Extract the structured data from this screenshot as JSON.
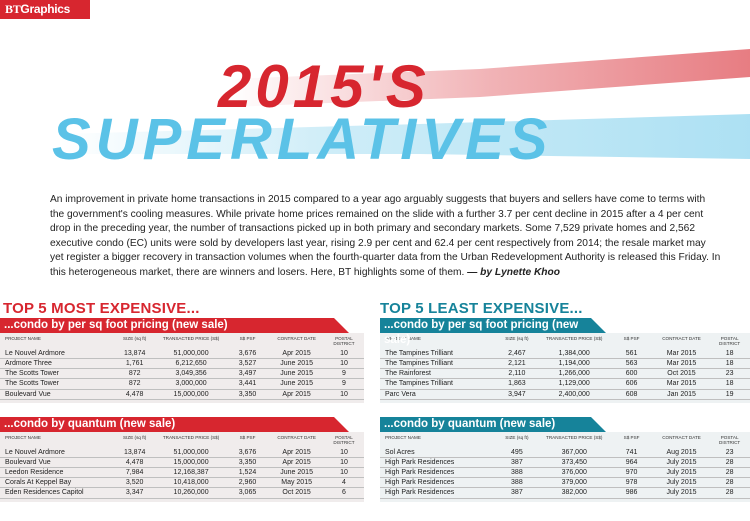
{
  "brand": {
    "label_bold": "BT",
    "label_rest": "Graphics"
  },
  "hero": {
    "line1": "2015'S",
    "line2": "SUPERLATIVES"
  },
  "intro": {
    "text": "An improvement in private home transactions in 2015 compared to a year ago arguably suggests that buyers and sellers have come to terms with the government's cooling measures. While private home prices remained on the slide with a further 3.7 per cent decline in 2015 after a 4 per cent drop in the preceding year, the number of transactions picked up in both primary and secondary markets. Some 7,529 private homes and 2,562 executive condo (EC) units were sold by developers last year, rising 2.9 per cent and 62.4 per cent respectively from 2014; the resale market may yet register a bigger recovery in transaction volumes when the fourth-quarter data from the Urban Redevelopment Authority is released this Friday. In this heterogeneous market, there are winners and losers. Here, BT highlights some of them. ",
    "byline": "— by Lynette Khoo"
  },
  "columns_header": [
    "PROJECT NAME",
    "SIZE (sq ft)",
    "TRANSACTED PRICE (S$)",
    "S$ PSF",
    "CONTRACT DATE",
    "POSTAL DISTRICT"
  ],
  "left": {
    "title": "TOP 5 MOST EXPENSIVE...",
    "sections": [
      {
        "heading": "...condo by per sq foot pricing (new sale)",
        "rows": [
          [
            "Le Nouvel Ardmore",
            "13,874",
            "51,000,000",
            "3,676",
            "Apr 2015",
            "10"
          ],
          [
            "Ardmore Three",
            "1,761",
            "6,212,650",
            "3,527",
            "June 2015",
            "10"
          ],
          [
            "The Scotts Tower",
            "872",
            "3,049,356",
            "3,497",
            "June 2015",
            "9"
          ],
          [
            "The Scotts Tower",
            "872",
            "3,000,000",
            "3,441",
            "June 2015",
            "9"
          ],
          [
            "Boulevard Vue",
            "4,478",
            "15,000,000",
            "3,350",
            "Apr 2015",
            "10"
          ]
        ]
      },
      {
        "heading": "...condo by quantum (new sale)",
        "rows": [
          [
            "Le Nouvel Ardmore",
            "13,874",
            "51,000,000",
            "3,676",
            "Apr 2015",
            "10"
          ],
          [
            "Boulevard Vue",
            "4,478",
            "15,000,000",
            "3,350",
            "Apr 2015",
            "10"
          ],
          [
            "Leedon Residence",
            "7,984",
            "12,168,387",
            "1,524",
            "June 2015",
            "10"
          ],
          [
            "Corals At Keppel Bay",
            "3,520",
            "10,418,000",
            "2,960",
            "May 2015",
            "4"
          ],
          [
            "Eden Residences Capitol",
            "3,347",
            "10,260,000",
            "3,065",
            "Oct 2015",
            "6"
          ]
        ]
      }
    ]
  },
  "right": {
    "title": "TOP 5 LEAST EXPENSIVE...",
    "sections": [
      {
        "heading": "...condo by per sq foot pricing (new sale)",
        "rows": [
          [
            "The Tampines Trilliant",
            "2,467",
            "1,384,000",
            "561",
            "Mar 2015",
            "18"
          ],
          [
            "The Tampines Trilliant",
            "2,121",
            "1,194,000",
            "563",
            "Mar 2015",
            "18"
          ],
          [
            "The Rainforest",
            "2,110",
            "1,266,000",
            "600",
            "Oct 2015",
            "23"
          ],
          [
            "The Tampines Trilliant",
            "1,863",
            "1,129,000",
            "606",
            "Mar 2015",
            "18"
          ],
          [
            "Parc Vera",
            "3,947",
            "2,400,000",
            "608",
            "Jan 2015",
            "19"
          ]
        ]
      },
      {
        "heading": "...condo by quantum (new sale)",
        "rows": [
          [
            "Sol Acres",
            "495",
            "367,000",
            "741",
            "Aug 2015",
            "23"
          ],
          [
            "High Park Residences",
            "387",
            "373,450",
            "964",
            "July 2015",
            "28"
          ],
          [
            "High Park Residences",
            "388",
            "376,000",
            "970",
            "July 2015",
            "28"
          ],
          [
            "High Park Residences",
            "388",
            "379,000",
            "978",
            "July 2015",
            "28"
          ],
          [
            "High Park Residences",
            "387",
            "382,000",
            "986",
            "July 2015",
            "28"
          ]
        ]
      }
    ]
  },
  "colors": {
    "red": "#d7262f",
    "teal": "#16839a",
    "hero_blue": "#5bc2e7"
  }
}
